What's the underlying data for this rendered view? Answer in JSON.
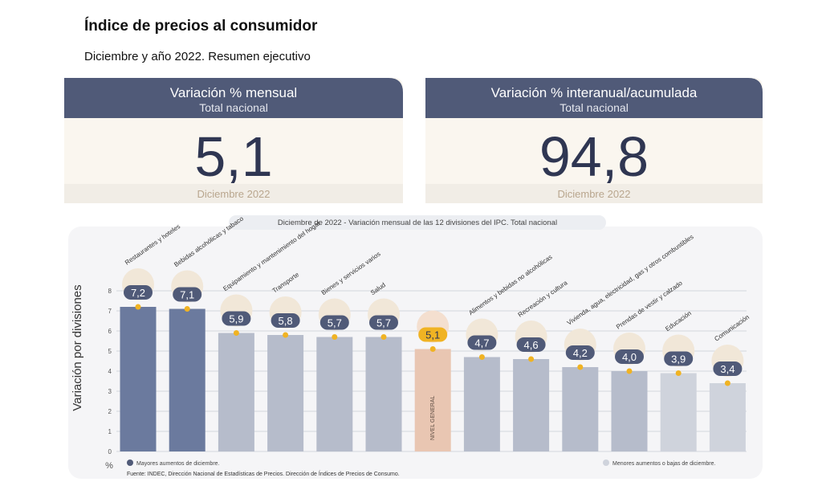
{
  "header": {
    "title": "Índice de precios al consumidor",
    "subtitle": "Diciembre y año 2022. Resumen ejecutivo"
  },
  "cards": [
    {
      "title": "Variación % mensual",
      "subtitle": "Total nacional",
      "value": "5,1",
      "period": "Diciembre 2022"
    },
    {
      "title": "Variación % interanual/acumulada",
      "subtitle": "Total nacional",
      "value": "94,8",
      "period": "Diciembre 2022"
    }
  ],
  "chart_data": {
    "type": "bar",
    "title": "Diciembre de 2022 - Variación mensual de las 12 divisiones del IPC. Total nacional",
    "ylabel": "Variación por divisiones",
    "yunit": "%",
    "categories": [
      "Restaurantes y hoteles",
      "Bebidas alcohólicas y tabaco",
      "Equipamiento y mantenimiento del hogar",
      "Transporte",
      "Bienes y servicios varios",
      "Salud",
      "NIVEL GENERAL",
      "Alimentos y bebidas no alcohólicas",
      "Recreación y cultura",
      "Vivienda, agua, electricidad, gas y otros combustibles",
      "Prendas de vestir y calzado",
      "Educación",
      "Comunicación"
    ],
    "values": [
      7.2,
      7.1,
      5.9,
      5.8,
      5.7,
      5.7,
      5.1,
      4.7,
      4.6,
      4.2,
      4.0,
      3.9,
      3.4
    ],
    "value_labels": [
      "7,2",
      "7,1",
      "5,9",
      "5,8",
      "5,7",
      "5,7",
      "5,1",
      "4,7",
      "4,6",
      "4,2",
      "4,0",
      "3,9",
      "3,4"
    ],
    "colors": [
      "#6b7a9e",
      "#6b7a9e",
      "#b6bccb",
      "#b6bccb",
      "#b6bccb",
      "#b6bccb",
      "#e9c6b2",
      "#b6bccb",
      "#b6bccb",
      "#b6bccb",
      "#b6bccb",
      "#cfd3dc",
      "#cfd3dc"
    ],
    "ylim": [
      0,
      8
    ],
    "yticks": [
      0,
      1,
      2,
      3,
      4,
      5,
      6,
      7,
      8
    ],
    "grid": true,
    "legend": [
      {
        "label": "Mayores aumentos de diciembre.",
        "color": "#505a78"
      },
      {
        "label": "Menores aumentos o bajas de diciembre.",
        "color": "#cfd3dc"
      }
    ],
    "source": "Fuente: INDEC, Dirección Nacional de Estadísticas de Precios. Dirección de Índices de Precios de Consumo."
  }
}
